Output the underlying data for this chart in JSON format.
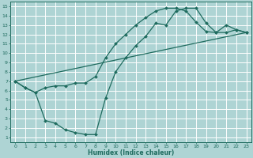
{
  "xlabel": "Humidex (Indice chaleur)",
  "xlim": [
    -0.5,
    23.5
  ],
  "ylim": [
    0.5,
    15.5
  ],
  "xticks": [
    0,
    1,
    2,
    3,
    4,
    5,
    6,
    7,
    8,
    9,
    10,
    11,
    12,
    13,
    14,
    15,
    16,
    17,
    18,
    19,
    20,
    21,
    22,
    23
  ],
  "yticks": [
    1,
    2,
    3,
    4,
    5,
    6,
    7,
    8,
    9,
    10,
    11,
    12,
    13,
    14,
    15
  ],
  "bg_color": "#aed4d4",
  "grid_color": "#ffffff",
  "line_color": "#1e6b5e",
  "line1_x": [
    0,
    1,
    2,
    3,
    4,
    5,
    6,
    7,
    8,
    9,
    10,
    11,
    12,
    13,
    14,
    15,
    16,
    17,
    18,
    19,
    20,
    21,
    22,
    23
  ],
  "line1_y": [
    7.0,
    6.3,
    5.8,
    6.3,
    6.5,
    6.5,
    6.8,
    6.8,
    7.5,
    9.5,
    11.0,
    12.0,
    13.0,
    13.8,
    14.5,
    14.8,
    14.8,
    14.5,
    13.3,
    12.3,
    12.2,
    13.0,
    12.5,
    12.2
  ],
  "line2_x": [
    0,
    1,
    2,
    3,
    4,
    5,
    6,
    7,
    8,
    9,
    10,
    11,
    12,
    13,
    14,
    15,
    16,
    17,
    18,
    19,
    20,
    21,
    22,
    23
  ],
  "line2_y": [
    7.0,
    6.3,
    5.8,
    2.8,
    2.5,
    1.8,
    1.5,
    1.3,
    1.3,
    5.2,
    8.0,
    9.5,
    10.8,
    11.8,
    13.2,
    13.0,
    14.5,
    14.8,
    14.8,
    13.2,
    12.2,
    12.2,
    12.5,
    12.2
  ],
  "line3_x": [
    0,
    23
  ],
  "line3_y": [
    7.0,
    12.2
  ]
}
